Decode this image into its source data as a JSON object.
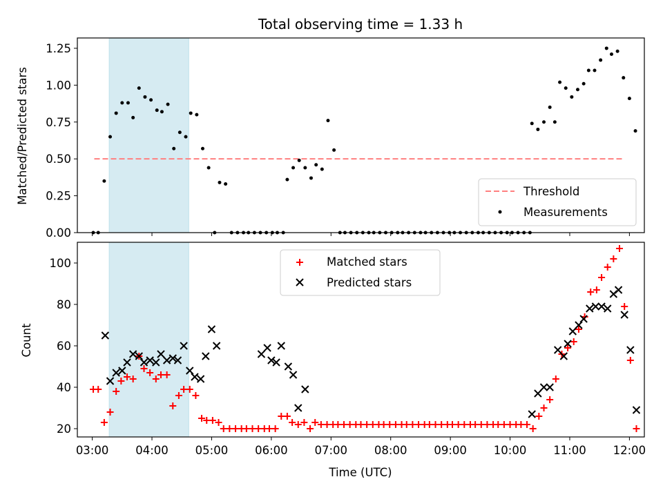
{
  "chart_data": [
    {
      "type": "scatter",
      "title": "Total observing time = 1.33 h",
      "ylabel": "Matched/Predicted stars",
      "xlabel": "",
      "xlim": [
        "02:45",
        "12:15"
      ],
      "ylim": [
        0,
        1.32
      ],
      "yticks": [
        "0.00",
        "0.25",
        "0.50",
        "0.75",
        "1.00",
        "1.25"
      ],
      "grid": false,
      "legend_position": "bottom-right",
      "shaded_region": {
        "start": "03:17",
        "end": "04:37",
        "color": "#add8e6"
      },
      "threshold": {
        "name": "Threshold",
        "value": 0.5,
        "from": "03:02",
        "to": "11:53",
        "color": "#ff7f7f",
        "style": "dashed"
      },
      "series": [
        {
          "name": "Measurements",
          "color": "#000000",
          "marker": "dot",
          "points": [
            [
              "03:01",
              0.0
            ],
            [
              "03:06",
              0.0
            ],
            [
              "03:12",
              0.35
            ],
            [
              "03:18",
              0.65
            ],
            [
              "03:24",
              0.81
            ],
            [
              "03:30",
              0.88
            ],
            [
              "03:36",
              0.88
            ],
            [
              "03:41",
              0.78
            ],
            [
              "03:47",
              0.98
            ],
            [
              "03:53",
              0.92
            ],
            [
              "03:59",
              0.9
            ],
            [
              "04:05",
              0.83
            ],
            [
              "04:10",
              0.82
            ],
            [
              "04:16",
              0.87
            ],
            [
              "04:22",
              0.57
            ],
            [
              "04:28",
              0.68
            ],
            [
              "04:34",
              0.65
            ],
            [
              "04:39",
              0.81
            ],
            [
              "04:45",
              0.8
            ],
            [
              "04:51",
              0.57
            ],
            [
              "04:57",
              0.44
            ],
            [
              "05:03",
              0.0
            ],
            [
              "05:08",
              0.34
            ],
            [
              "05:14",
              0.33
            ],
            [
              "05:20",
              0.0
            ],
            [
              "05:26",
              0.0
            ],
            [
              "05:32",
              0.0
            ],
            [
              "05:37",
              0.0
            ],
            [
              "05:43",
              0.0
            ],
            [
              "05:49",
              0.0
            ],
            [
              "05:55",
              0.0
            ],
            [
              "06:01",
              0.0
            ],
            [
              "06:06",
              0.0
            ],
            [
              "06:12",
              0.0
            ],
            [
              "06:16",
              0.36
            ],
            [
              "06:22",
              0.44
            ],
            [
              "06:28",
              0.49
            ],
            [
              "06:34",
              0.44
            ],
            [
              "06:40",
              0.37
            ],
            [
              "06:45",
              0.46
            ],
            [
              "06:51",
              0.43
            ],
            [
              "06:57",
              0.76
            ],
            [
              "07:03",
              0.56
            ],
            [
              "07:09",
              0.0
            ],
            [
              "07:14",
              0.0
            ],
            [
              "07:20",
              0.0
            ],
            [
              "07:26",
              0.0
            ],
            [
              "07:32",
              0.0
            ],
            [
              "07:38",
              0.0
            ],
            [
              "07:43",
              0.0
            ],
            [
              "07:49",
              0.0
            ],
            [
              "07:55",
              0.0
            ],
            [
              "08:01",
              0.0
            ],
            [
              "08:07",
              0.0
            ],
            [
              "08:12",
              0.0
            ],
            [
              "08:18",
              0.0
            ],
            [
              "08:24",
              0.0
            ],
            [
              "08:30",
              0.0
            ],
            [
              "08:35",
              0.0
            ],
            [
              "08:41",
              0.0
            ],
            [
              "08:47",
              0.0
            ],
            [
              "08:53",
              0.0
            ],
            [
              "08:59",
              0.0
            ],
            [
              "09:04",
              0.0
            ],
            [
              "09:10",
              0.0
            ],
            [
              "09:16",
              0.0
            ],
            [
              "09:22",
              0.0
            ],
            [
              "09:28",
              0.0
            ],
            [
              "09:33",
              0.0
            ],
            [
              "09:39",
              0.0
            ],
            [
              "09:45",
              0.0
            ],
            [
              "09:51",
              0.0
            ],
            [
              "09:57",
              0.0
            ],
            [
              "10:02",
              0.0
            ],
            [
              "10:08",
              0.0
            ],
            [
              "10:14",
              0.0
            ],
            [
              "10:20",
              0.0
            ],
            [
              "10:22",
              0.74
            ],
            [
              "10:28",
              0.7
            ],
            [
              "10:34",
              0.75
            ],
            [
              "10:40",
              0.85
            ],
            [
              "10:45",
              0.75
            ],
            [
              "10:50",
              1.02
            ],
            [
              "10:56",
              0.98
            ],
            [
              "11:02",
              0.92
            ],
            [
              "11:08",
              0.97
            ],
            [
              "11:14",
              1.01
            ],
            [
              "11:19",
              1.1
            ],
            [
              "11:25",
              1.1
            ],
            [
              "11:31",
              1.17
            ],
            [
              "11:37",
              1.25
            ],
            [
              "11:42",
              1.21
            ],
            [
              "11:48",
              1.23
            ],
            [
              "11:54",
              1.05
            ],
            [
              "12:00",
              0.91
            ],
            [
              "12:06",
              0.69
            ]
          ]
        }
      ]
    },
    {
      "type": "scatter",
      "title": "",
      "ylabel": "Count",
      "xlabel": "Time (UTC)",
      "xlim": [
        "02:45",
        "12:15"
      ],
      "ylim": [
        16,
        110
      ],
      "yticks": [
        "20",
        "40",
        "60",
        "80",
        "100"
      ],
      "xticks": [
        "03:00",
        "04:00",
        "05:00",
        "06:00",
        "07:00",
        "08:00",
        "09:00",
        "10:00",
        "11:00",
        "12:00"
      ],
      "grid": false,
      "legend_position": "top-center",
      "shaded_region": {
        "start": "03:17",
        "end": "04:37",
        "color": "#add8e6"
      },
      "series": [
        {
          "name": "Matched stars",
          "color": "#ff0000",
          "marker": "plus",
          "points": [
            [
              "03:01",
              39
            ],
            [
              "03:06",
              39
            ],
            [
              "03:12",
              23
            ],
            [
              "03:18",
              28
            ],
            [
              "03:24",
              38
            ],
            [
              "03:29",
              43
            ],
            [
              "03:35",
              45
            ],
            [
              "03:41",
              44
            ],
            [
              "03:47",
              55
            ],
            [
              "03:52",
              49
            ],
            [
              "03:58",
              47
            ],
            [
              "04:04",
              44
            ],
            [
              "04:09",
              46
            ],
            [
              "04:15",
              46
            ],
            [
              "04:21",
              31
            ],
            [
              "04:27",
              36
            ],
            [
              "04:32",
              39
            ],
            [
              "04:38",
              39
            ],
            [
              "04:44",
              36
            ],
            [
              "04:50",
              25
            ],
            [
              "04:55",
              24
            ],
            [
              "05:01",
              24
            ],
            [
              "05:07",
              23
            ],
            [
              "05:12",
              20
            ],
            [
              "05:18",
              20
            ],
            [
              "05:24",
              20
            ],
            [
              "05:30",
              20
            ],
            [
              "05:35",
              20
            ],
            [
              "05:41",
              20
            ],
            [
              "05:47",
              20
            ],
            [
              "05:53",
              20
            ],
            [
              "05:58",
              20
            ],
            [
              "06:04",
              20
            ],
            [
              "06:10",
              26
            ],
            [
              "06:16",
              26
            ],
            [
              "06:21",
              23
            ],
            [
              "06:27",
              22
            ],
            [
              "06:33",
              23
            ],
            [
              "06:39",
              20
            ],
            [
              "06:44",
              23
            ],
            [
              "06:50",
              22
            ],
            [
              "06:56",
              22
            ],
            [
              "07:02",
              22
            ],
            [
              "07:07",
              22
            ],
            [
              "07:13",
              22
            ],
            [
              "07:19",
              22
            ],
            [
              "07:25",
              22
            ],
            [
              "07:30",
              22
            ],
            [
              "07:36",
              22
            ],
            [
              "07:42",
              22
            ],
            [
              "07:48",
              22
            ],
            [
              "07:53",
              22
            ],
            [
              "07:59",
              22
            ],
            [
              "08:05",
              22
            ],
            [
              "08:11",
              22
            ],
            [
              "08:16",
              22
            ],
            [
              "08:22",
              22
            ],
            [
              "08:28",
              22
            ],
            [
              "08:34",
              22
            ],
            [
              "08:39",
              22
            ],
            [
              "08:45",
              22
            ],
            [
              "08:51",
              22
            ],
            [
              "08:57",
              22
            ],
            [
              "09:02",
              22
            ],
            [
              "09:08",
              22
            ],
            [
              "09:14",
              22
            ],
            [
              "09:20",
              22
            ],
            [
              "09:25",
              22
            ],
            [
              "09:31",
              22
            ],
            [
              "09:37",
              22
            ],
            [
              "09:43",
              22
            ],
            [
              "09:48",
              22
            ],
            [
              "09:54",
              22
            ],
            [
              "10:00",
              22
            ],
            [
              "10:06",
              22
            ],
            [
              "10:11",
              22
            ],
            [
              "10:17",
              22
            ],
            [
              "10:23",
              20
            ],
            [
              "10:29",
              26
            ],
            [
              "10:34",
              30
            ],
            [
              "10:40",
              34
            ],
            [
              "10:46",
              44
            ],
            [
              "10:52",
              56
            ],
            [
              "10:58",
              59
            ],
            [
              "11:04",
              62
            ],
            [
              "11:09",
              68
            ],
            [
              "11:15",
              74
            ],
            [
              "11:21",
              86
            ],
            [
              "11:27",
              87
            ],
            [
              "11:32",
              93
            ],
            [
              "11:38",
              98
            ],
            [
              "11:44",
              102
            ],
            [
              "11:50",
              107
            ],
            [
              "11:55",
              79
            ],
            [
              "12:01",
              53
            ],
            [
              "12:07",
              20
            ]
          ]
        },
        {
          "name": "Predicted stars",
          "color": "#000000",
          "marker": "x",
          "points": [
            [
              "03:13",
              65
            ],
            [
              "03:18",
              43
            ],
            [
              "03:24",
              47
            ],
            [
              "03:30",
              48
            ],
            [
              "03:35",
              52
            ],
            [
              "03:41",
              56
            ],
            [
              "03:47",
              55
            ],
            [
              "03:52",
              52
            ],
            [
              "03:58",
              53
            ],
            [
              "04:04",
              52
            ],
            [
              "04:09",
              56
            ],
            [
              "04:15",
              53
            ],
            [
              "04:21",
              54
            ],
            [
              "04:26",
              53
            ],
            [
              "04:32",
              60
            ],
            [
              "04:38",
              48
            ],
            [
              "04:43",
              45
            ],
            [
              "04:49",
              44
            ],
            [
              "04:54",
              55
            ],
            [
              "05:00",
              68
            ],
            [
              "05:05",
              60
            ],
            [
              "05:50",
              56
            ],
            [
              "05:56",
              59
            ],
            [
              "06:00",
              53
            ],
            [
              "06:05",
              52
            ],
            [
              "06:10",
              60
            ],
            [
              "06:17",
              50
            ],
            [
              "06:22",
              46
            ],
            [
              "06:27",
              30
            ],
            [
              "06:34",
              39
            ],
            [
              "10:22",
              27
            ],
            [
              "10:28",
              37
            ],
            [
              "10:34",
              40
            ],
            [
              "10:40",
              40
            ],
            [
              "10:48",
              58
            ],
            [
              "10:54",
              55
            ],
            [
              "10:58",
              61
            ],
            [
              "11:03",
              67
            ],
            [
              "11:09",
              70
            ],
            [
              "11:14",
              73
            ],
            [
              "11:20",
              78
            ],
            [
              "11:26",
              79
            ],
            [
              "11:32",
              79
            ],
            [
              "11:38",
              78
            ],
            [
              "11:44",
              85
            ],
            [
              "11:49",
              87
            ],
            [
              "11:55",
              75
            ],
            [
              "12:01",
              58
            ],
            [
              "12:07",
              29
            ]
          ]
        }
      ]
    }
  ]
}
